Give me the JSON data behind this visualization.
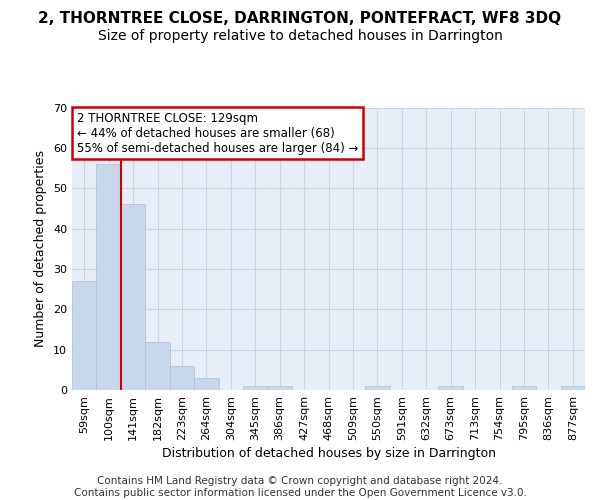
{
  "title": "2, THORNTREE CLOSE, DARRINGTON, PONTEFRACT, WF8 3DQ",
  "subtitle": "Size of property relative to detached houses in Darrington",
  "xlabel": "Distribution of detached houses by size in Darrington",
  "ylabel": "Number of detached properties",
  "categories": [
    "59sqm",
    "100sqm",
    "141sqm",
    "182sqm",
    "223sqm",
    "264sqm",
    "304sqm",
    "345sqm",
    "386sqm",
    "427sqm",
    "468sqm",
    "509sqm",
    "550sqm",
    "591sqm",
    "632sqm",
    "673sqm",
    "713sqm",
    "754sqm",
    "795sqm",
    "836sqm",
    "877sqm"
  ],
  "values": [
    27,
    56,
    46,
    12,
    6,
    3,
    0,
    1,
    1,
    0,
    0,
    0,
    1,
    0,
    0,
    1,
    0,
    0,
    1,
    0,
    1
  ],
  "bar_color": "#c8d8ea",
  "bar_edge_color": "#a8c0d4",
  "vline_x_index": 1.5,
  "vline_color": "#cc0000",
  "annotation_text": "2 THORNTREE CLOSE: 129sqm\n← 44% of detached houses are smaller (68)\n55% of semi-detached houses are larger (84) →",
  "annotation_box_facecolor": "#ffffff",
  "annotation_box_edgecolor": "#cc0000",
  "ylim": [
    0,
    70
  ],
  "yticks": [
    0,
    10,
    20,
    30,
    40,
    50,
    60,
    70
  ],
  "grid_color": "#ccd4e4",
  "plot_bg_color": "#e8eef8",
  "footer": "Contains HM Land Registry data © Crown copyright and database right 2024.\nContains public sector information licensed under the Open Government Licence v3.0.",
  "title_fontsize": 11,
  "subtitle_fontsize": 10,
  "axis_label_fontsize": 9,
  "tick_fontsize": 8,
  "annotation_fontsize": 8.5,
  "footer_fontsize": 7.5
}
